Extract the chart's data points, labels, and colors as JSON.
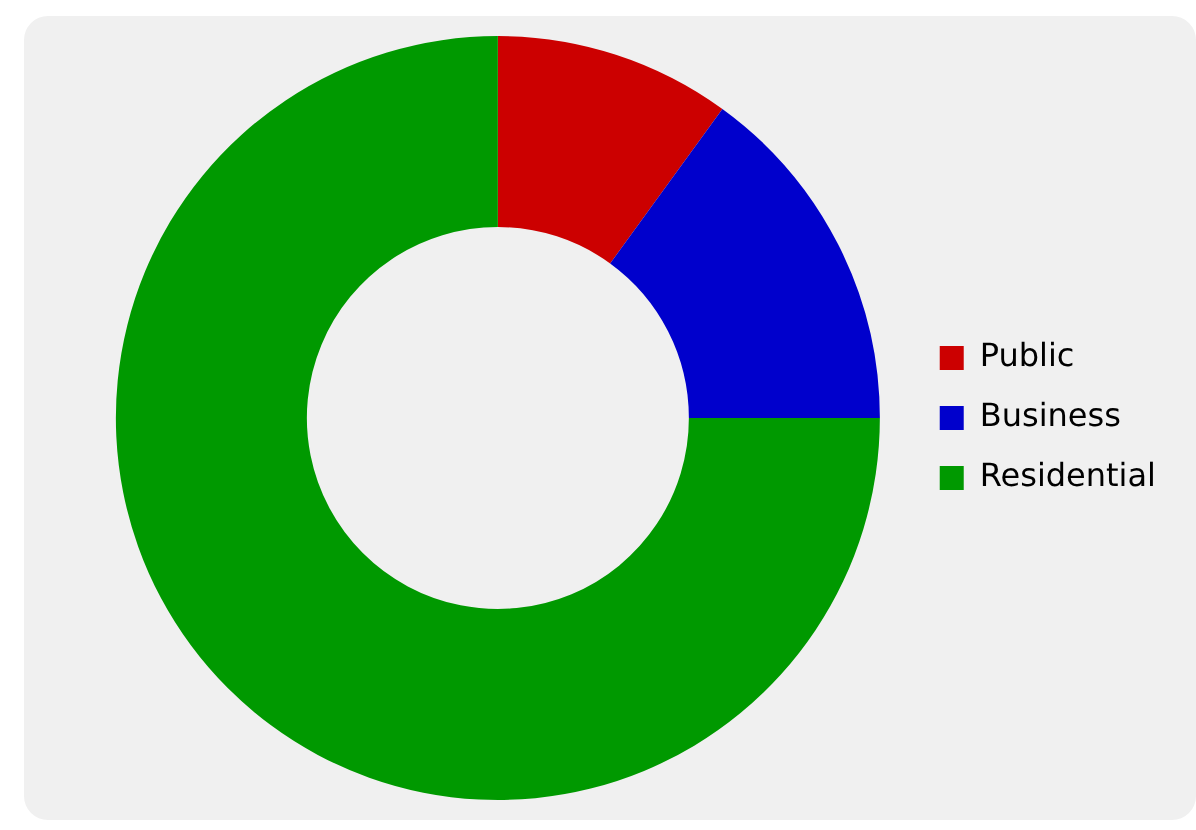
{
  "chart_data": {
    "type": "donut",
    "categories": [
      "Public",
      "Business",
      "Residential"
    ],
    "values": [
      10,
      15,
      75
    ],
    "colors": [
      "#cc0000",
      "#0000cc",
      "#009900"
    ],
    "legend": "right"
  }
}
